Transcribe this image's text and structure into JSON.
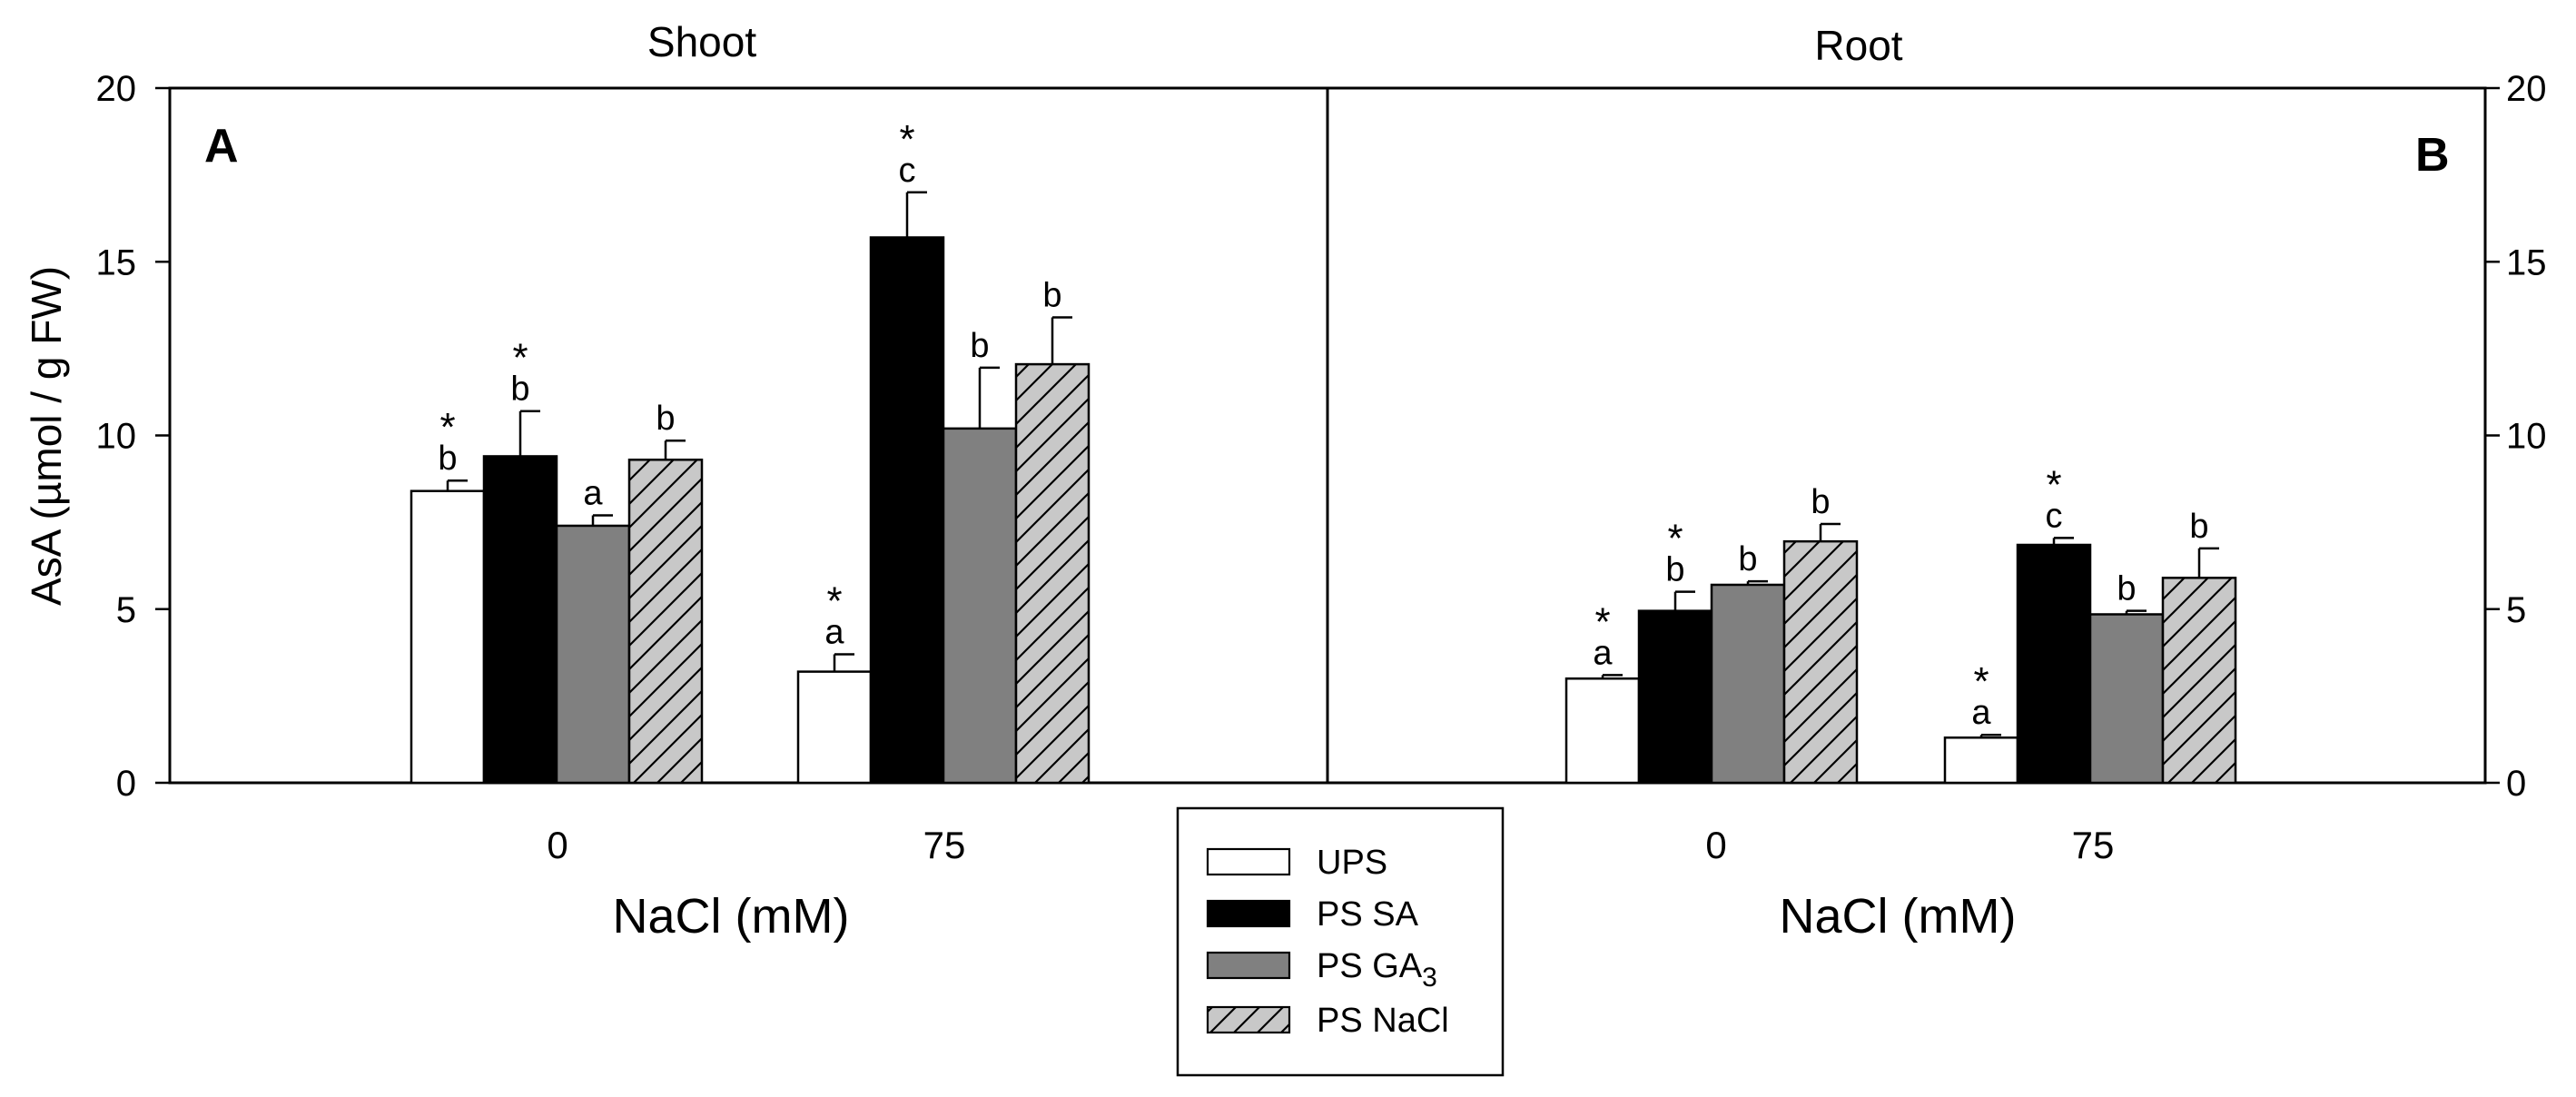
{
  "chart_data": [
    {
      "type": "bar",
      "panel": "A",
      "title": "Shoot",
      "xlabel": "NaCl (mM)",
      "ylabel": "AsA (µmol / g FW)",
      "ylim": [
        0,
        20
      ],
      "yticks": [
        0,
        5,
        10,
        15,
        20
      ],
      "categories": [
        "0",
        "75"
      ],
      "series": [
        {
          "name": "UPS",
          "values": [
            8.4,
            3.2
          ],
          "errors": [
            0.3,
            0.5
          ],
          "letters": [
            "b",
            "a"
          ],
          "stars": [
            true,
            true
          ]
        },
        {
          "name": "PS SA",
          "values": [
            9.4,
            15.7
          ],
          "errors": [
            1.3,
            1.3
          ],
          "letters": [
            "b",
            "c"
          ],
          "stars": [
            true,
            true
          ]
        },
        {
          "name": "PS GA3",
          "values": [
            7.4,
            10.2
          ],
          "errors": [
            0.3,
            1.75
          ],
          "letters": [
            "a",
            "b"
          ],
          "stars": [
            false,
            false
          ]
        },
        {
          "name": "PS NaCl",
          "values": [
            9.3,
            12.05
          ],
          "errors": [
            0.55,
            1.35
          ],
          "letters": [
            "b",
            "b"
          ],
          "stars": [
            false,
            false
          ]
        }
      ]
    },
    {
      "type": "bar",
      "panel": "B",
      "title": "Root",
      "xlabel": "NaCl (mM)",
      "ylabel": "",
      "ylim": [
        0,
        20
      ],
      "yticks": [
        0,
        5,
        10,
        15,
        20
      ],
      "categories": [
        "0",
        "75"
      ],
      "series": [
        {
          "name": "UPS",
          "values": [
            3.0,
            1.3
          ],
          "errors": [
            0.1,
            0.08
          ],
          "letters": [
            "a",
            "a"
          ],
          "stars": [
            true,
            true
          ]
        },
        {
          "name": "PS SA",
          "values": [
            4.95,
            6.85
          ],
          "errors": [
            0.55,
            0.2
          ],
          "letters": [
            "b",
            "c"
          ],
          "stars": [
            true,
            true
          ]
        },
        {
          "name": "PS GA3",
          "values": [
            5.7,
            4.85
          ],
          "errors": [
            0.1,
            0.1
          ],
          "letters": [
            "b",
            "b"
          ],
          "stars": [
            false,
            false
          ]
        },
        {
          "name": "PS NaCl",
          "values": [
            6.95,
            5.9
          ],
          "errors": [
            0.5,
            0.85
          ],
          "letters": [
            "b",
            "b"
          ],
          "stars": [
            false,
            false
          ]
        }
      ]
    }
  ],
  "legend": {
    "items": [
      {
        "label": "UPS",
        "style": "white"
      },
      {
        "label": "PS SA",
        "style": "black"
      },
      {
        "label": "PS GA",
        "subscript": "3",
        "style": "gray"
      },
      {
        "label": "PS NaCl",
        "style": "hatch"
      }
    ]
  },
  "colors": {
    "UPS": "#ffffff",
    "PS SA": "#000000",
    "PS GA3": "#808080",
    "PS NaCl": "#c8c8c8",
    "axis": "#000000"
  }
}
